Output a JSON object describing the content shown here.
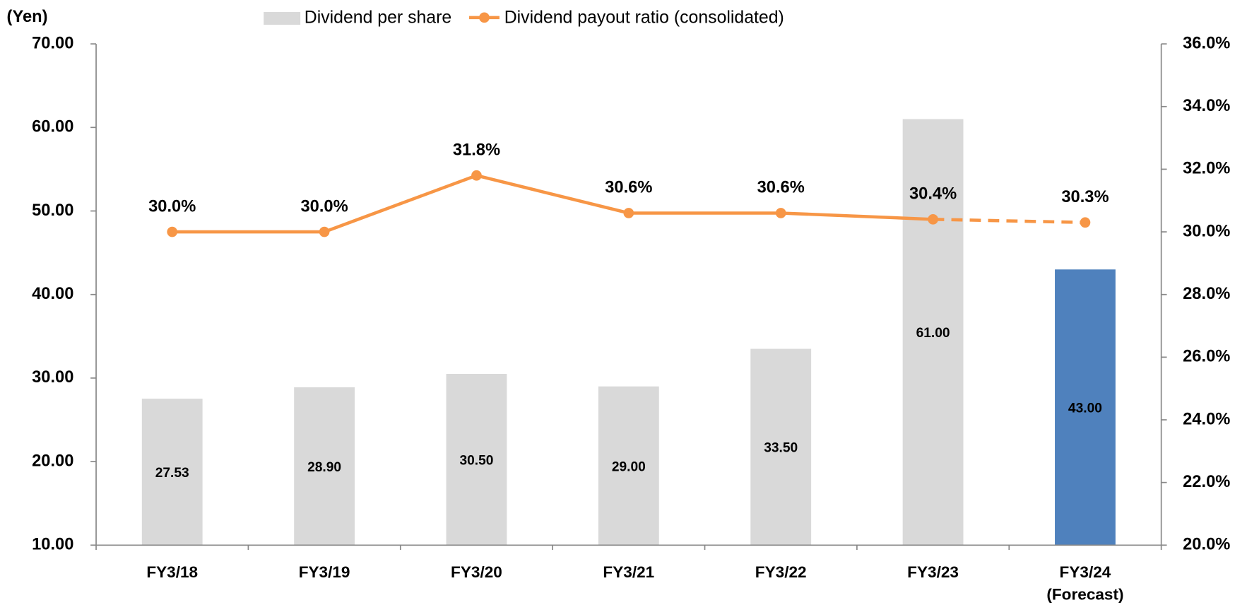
{
  "chart_data": {
    "type": "bar",
    "y_label": "(Yen)",
    "categories": [
      "FY3/18",
      "FY3/19",
      "FY3/20",
      "FY3/21",
      "FY3/22",
      "FY3/23",
      "FY3/24\n(Forecast)"
    ],
    "series": [
      {
        "name": "Dividend per share",
        "type": "bar",
        "values": [
          27.53,
          28.9,
          30.5,
          29.0,
          33.5,
          61.0,
          43.0
        ],
        "value_labels": [
          "27.53",
          "28.90",
          "30.50",
          "29.00",
          "33.50",
          "61.00",
          "43.00"
        ],
        "colors": [
          "#d9d9d9",
          "#d9d9d9",
          "#d9d9d9",
          "#d9d9d9",
          "#d9d9d9",
          "#d9d9d9",
          "#4f81bd"
        ],
        "label_colors": [
          "#000000",
          "#000000",
          "#000000",
          "#000000",
          "#000000",
          "#000000",
          "#ffffff"
        ]
      },
      {
        "name": "Dividend payout ratio (consolidated)",
        "type": "line",
        "axis": "y2",
        "color": "#f79646",
        "values": [
          30.0,
          30.0,
          31.8,
          30.6,
          30.6,
          30.4,
          30.3
        ],
        "value_labels": [
          "30.0%",
          "30.0%",
          "31.8%",
          "30.6%",
          "30.6%",
          "30.4%",
          "30.3%"
        ],
        "dashed_segments": [
          5
        ]
      }
    ],
    "ylim": [
      10,
      70
    ],
    "yticks": [
      {
        "value": 10,
        "label": "10.00"
      },
      {
        "value": 20,
        "label": "20.00"
      },
      {
        "value": 30,
        "label": "30.00"
      },
      {
        "value": 40,
        "label": "40.00"
      },
      {
        "value": 50,
        "label": "50.00"
      },
      {
        "value": 60,
        "label": "60.00"
      },
      {
        "value": 70,
        "label": "70.00"
      }
    ],
    "y2lim": [
      20,
      36
    ],
    "y2ticks": [
      {
        "value": 20,
        "label": "20.0%"
      },
      {
        "value": 22,
        "label": "22.0%"
      },
      {
        "value": 24,
        "label": "24.0%"
      },
      {
        "value": 26,
        "label": "26.0%"
      },
      {
        "value": 28,
        "label": "28.0%"
      },
      {
        "value": 30,
        "label": "30.0%"
      },
      {
        "value": 32,
        "label": "32.0%"
      },
      {
        "value": 34,
        "label": "34.0%"
      },
      {
        "value": 36,
        "label": "36.0%"
      }
    ],
    "grid": false,
    "legend": "top"
  }
}
